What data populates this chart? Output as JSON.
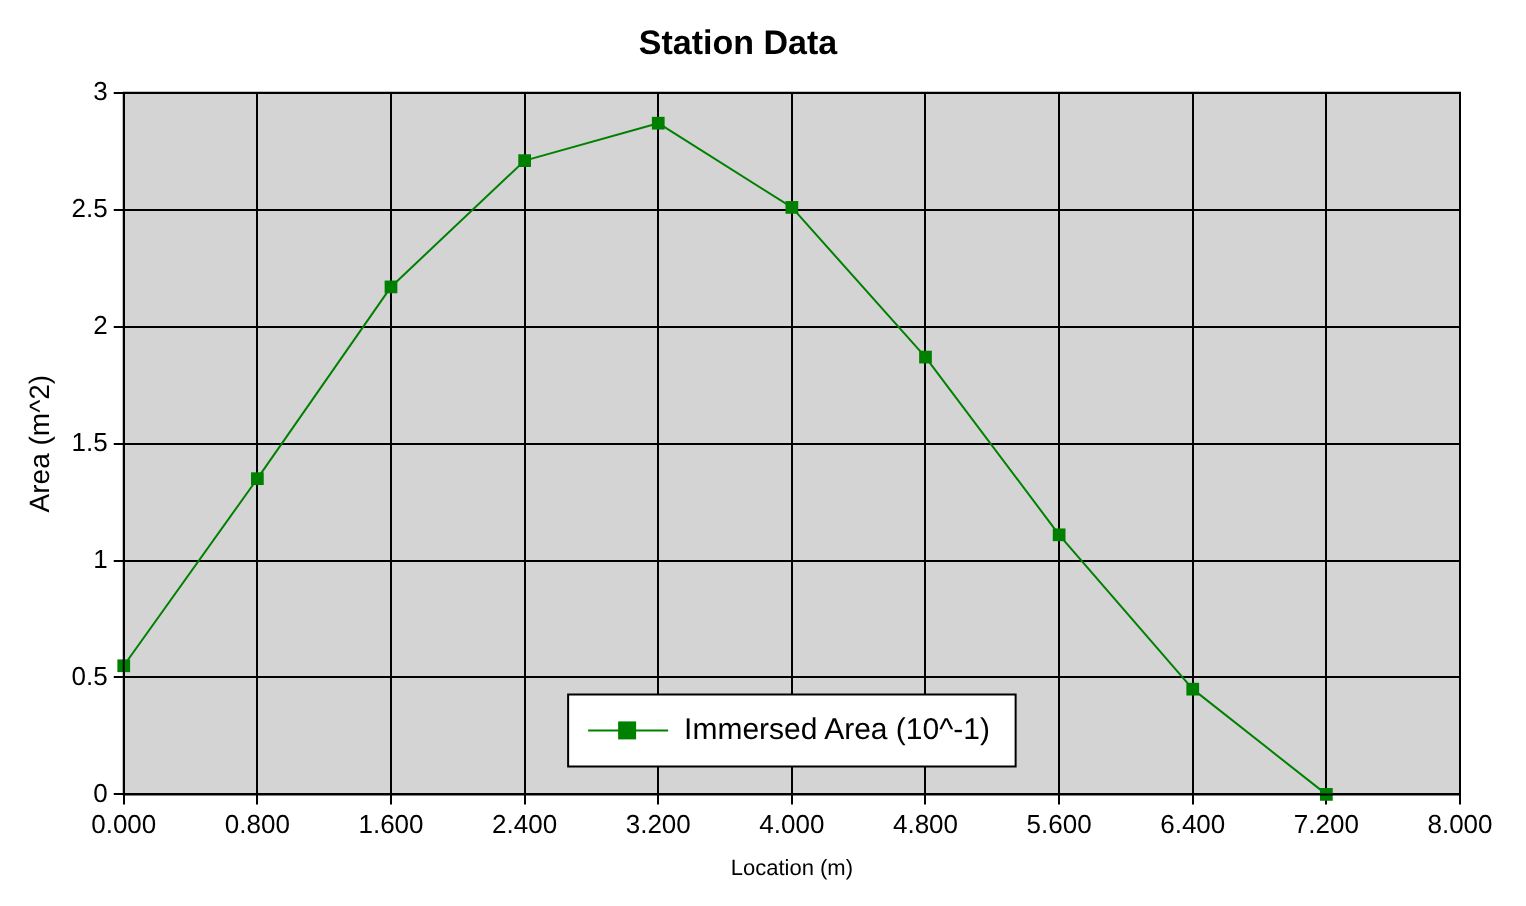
{
  "chart_data": {
    "type": "line",
    "title": "Station Data",
    "xlabel": "Location (m)",
    "ylabel": "Area (m^2)",
    "x": [
      0,
      0.8,
      1.6,
      2.4,
      3.2,
      4.0,
      4.8,
      5.6,
      6.4,
      7.2
    ],
    "series": [
      {
        "name": "Immersed Area (10^-1)",
        "color": "#008000",
        "values": [
          0.55,
          1.35,
          2.17,
          2.71,
          2.87,
          2.51,
          1.87,
          1.11,
          0.45,
          0
        ]
      }
    ],
    "xlim": [
      0,
      8
    ],
    "xticks": [
      {
        "value": 0,
        "label": "0.000"
      },
      {
        "value": 0.8,
        "label": "0.800"
      },
      {
        "value": 1.6,
        "label": "1.600"
      },
      {
        "value": 2.4,
        "label": "2.400"
      },
      {
        "value": 3.2,
        "label": "3.200"
      },
      {
        "value": 4,
        "label": "4.000"
      },
      {
        "value": 4.8,
        "label": "4.800"
      },
      {
        "value": 5.6,
        "label": "5.600"
      },
      {
        "value": 6.4,
        "label": "6.400"
      },
      {
        "value": 7.2,
        "label": "7.200"
      },
      {
        "value": 8,
        "label": "8.000"
      }
    ],
    "ylim": [
      0,
      3
    ],
    "yticks": [
      0,
      0.5,
      1,
      1.5,
      2,
      2.5,
      3
    ],
    "grid": true,
    "legend": "bottom",
    "marker": "square",
    "line_style": "solid"
  }
}
